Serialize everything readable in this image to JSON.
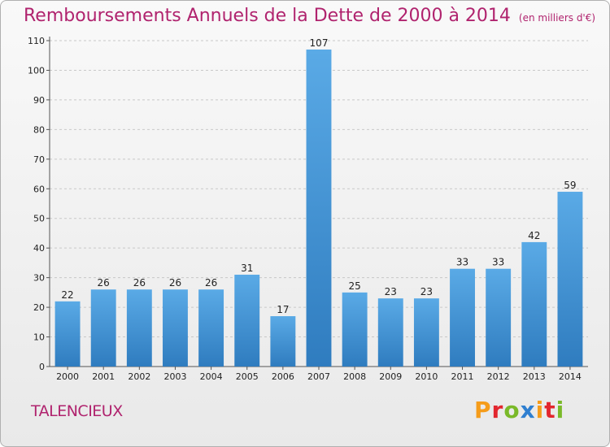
{
  "colors": {
    "title": "#b0236e",
    "bar_top": "#5aaae6",
    "bar_bottom": "#2f7cbf",
    "grid": "#c8c8c8"
  },
  "brand": {
    "logo_text": "Proxiti",
    "logo_colors": [
      "#f59c1a",
      "#e2262e",
      "#7ab929",
      "#2f7fd0",
      "#f59c1a",
      "#e2262e",
      "#7ab929"
    ]
  },
  "commune": {
    "name": "TALENCIEUX"
  },
  "chart_data": {
    "type": "bar",
    "title": "Remboursements Annuels de la Dette de 2000 à 2014",
    "subtitle": "(en milliers d'€)",
    "xlabel": "",
    "ylabel": "",
    "categories": [
      "2000",
      "2001",
      "2002",
      "2003",
      "2004",
      "2005",
      "2006",
      "2007",
      "2008",
      "2009",
      "2010",
      "2011",
      "2012",
      "2013",
      "2014"
    ],
    "values": [
      22,
      26,
      26,
      26,
      26,
      31,
      17,
      107,
      25,
      23,
      23,
      33,
      33,
      42,
      59
    ],
    "ylim": [
      0,
      110
    ],
    "yticks": [
      0,
      10,
      20,
      30,
      40,
      50,
      60,
      70,
      80,
      90,
      100,
      110
    ],
    "grid": true,
    "legend": "none"
  }
}
